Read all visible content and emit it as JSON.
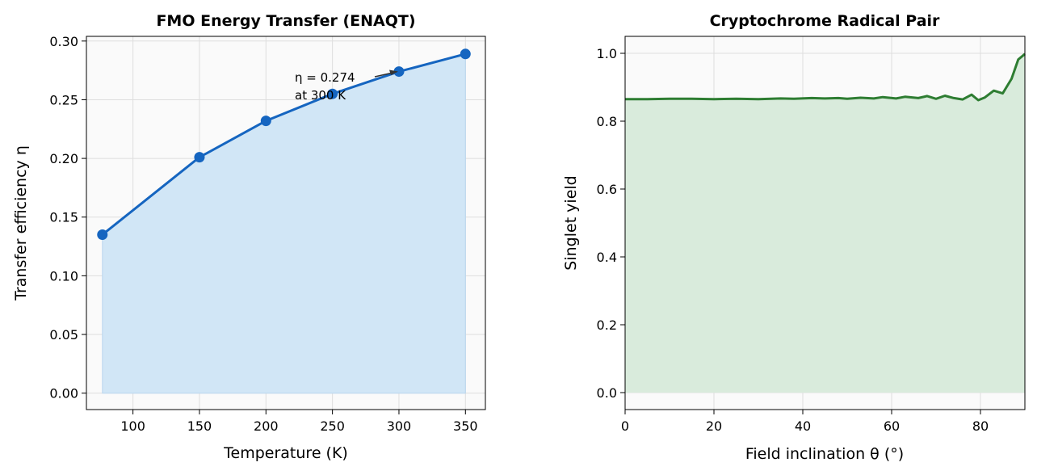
{
  "chart_data": [
    {
      "type": "line",
      "title": "FMO Energy Transfer (ENAQT)",
      "xlabel": "Temperature (K)",
      "ylabel": "Transfer efficiency η",
      "xlim": [
        65,
        365
      ],
      "ylim": [
        -0.014,
        0.304
      ],
      "xticks": [
        100,
        150,
        200,
        250,
        300,
        350
      ],
      "xtick_labels": [
        "100",
        "150",
        "200",
        "250",
        "300",
        "350"
      ],
      "yticks": [
        0.0,
        0.05,
        0.1,
        0.15,
        0.2,
        0.25,
        0.3
      ],
      "ytick_labels": [
        "0.00",
        "0.05",
        "0.10",
        "0.15",
        "0.20",
        "0.25",
        "0.30"
      ],
      "grid": true,
      "fill_under": true,
      "colors": {
        "line": "#1565c0",
        "fill": "#d1e6f6"
      },
      "x": [
        77,
        150,
        200,
        250,
        300,
        350
      ],
      "y": [
        0.135,
        0.201,
        0.232,
        0.255,
        0.274,
        0.289
      ],
      "annotation": {
        "lines": [
          "η = 0.274",
          "at 300 K"
        ],
        "x": 300,
        "y": 0.274
      }
    },
    {
      "type": "area",
      "title": "Cryptochrome Radical Pair",
      "xlabel": "Field inclination θ (°)",
      "ylabel": "Singlet yield",
      "xlim": [
        0,
        90
      ],
      "ylim": [
        -0.05,
        1.05
      ],
      "xticks": [
        0,
        20,
        40,
        60,
        80
      ],
      "xtick_labels": [
        "0",
        "20",
        "40",
        "60",
        "80"
      ],
      "yticks": [
        0.0,
        0.2,
        0.4,
        0.6,
        0.8,
        1.0
      ],
      "ytick_labels": [
        "0.0",
        "0.2",
        "0.4",
        "0.6",
        "0.8",
        "1.0"
      ],
      "grid": true,
      "fill_under": true,
      "colors": {
        "line": "#2e7d32",
        "fill": "#d9ebdc"
      },
      "x": [
        0,
        5,
        10,
        15,
        20,
        25,
        30,
        35,
        38,
        42,
        45,
        48,
        50,
        53,
        56,
        58,
        61,
        63,
        66,
        68,
        70,
        72,
        74,
        76,
        78,
        79.5,
        81,
        83,
        85,
        87,
        88.5,
        90
      ],
      "y": [
        0.865,
        0.865,
        0.866,
        0.866,
        0.865,
        0.866,
        0.865,
        0.867,
        0.866,
        0.868,
        0.867,
        0.868,
        0.866,
        0.869,
        0.867,
        0.871,
        0.867,
        0.872,
        0.868,
        0.874,
        0.866,
        0.875,
        0.868,
        0.864,
        0.878,
        0.862,
        0.87,
        0.89,
        0.882,
        0.925,
        0.982,
        0.998
      ]
    }
  ]
}
